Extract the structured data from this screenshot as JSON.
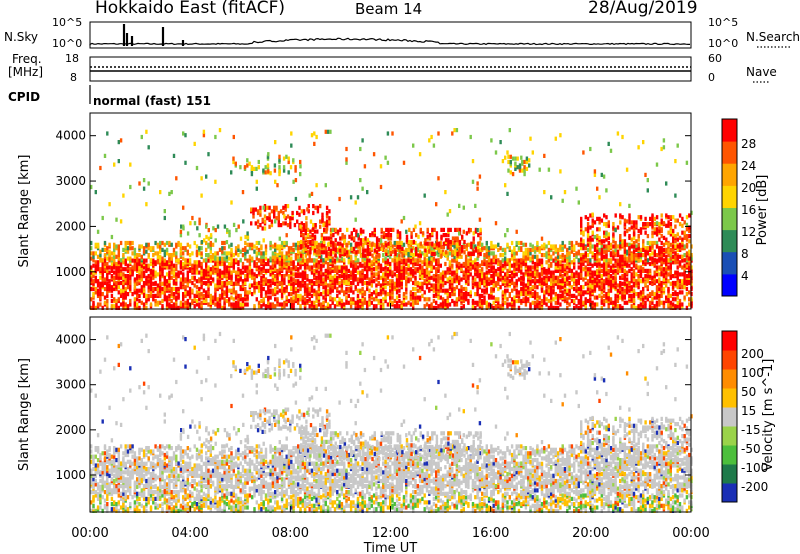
{
  "header": {
    "title": "Hokkaido East (fitACF)",
    "beam": "Beam 14",
    "date": "28/Aug/2019"
  },
  "top_panels": {
    "nsky_label": "N.Sky",
    "nsearch_label": "N.Search",
    "nsky_ticks": [
      "10^5",
      "10^0"
    ],
    "nsearch_ticks": [
      "10^5",
      "10^0"
    ],
    "freq_label_line1": "Freq.",
    "freq_label_line2": "[MHz]",
    "freq_ticks": [
      "18",
      "8"
    ],
    "nave_label": "Nave",
    "nave_ticks": [
      "60",
      "0"
    ],
    "cpid_label": "CPID",
    "cpid_value": "normal (fast) 151"
  },
  "chart_data": [
    {
      "type": "heatmap",
      "title": "",
      "xlabel": "",
      "ylabel": "Slant Range [km]",
      "ylim": [
        180,
        4500
      ],
      "yticks": [
        "1000",
        "2000",
        "3000",
        "4000"
      ],
      "colorbar": {
        "label": "Power [dB]",
        "ticks": [
          "28",
          "24",
          "20",
          "16",
          "12",
          "8",
          "4"
        ],
        "colors": [
          "#ff0000",
          "#ff5500",
          "#ffa500",
          "#ffd400",
          "#7cc84a",
          "#2e8b57",
          "#1a4fb5",
          "#0000ff"
        ]
      }
    },
    {
      "type": "heatmap",
      "title": "",
      "xlabel": "Time UT",
      "ylabel": "Slant Range [km]",
      "ylim": [
        180,
        4500
      ],
      "yticks": [
        "1000",
        "2000",
        "3000",
        "4000"
      ],
      "xticks": [
        "00:00",
        "04:00",
        "08:00",
        "12:00",
        "16:00",
        "20:00",
        "00:00"
      ],
      "colorbar": {
        "label": "Velocity [m s^-1]",
        "ticks": [
          "200",
          "100",
          "50",
          "15",
          "-15",
          "-50",
          "-100",
          "-200"
        ],
        "colors": [
          "#1a2fb5",
          "#1e7a4a",
          "#4cbf3c",
          "#9ad34a",
          "#c8c8c8",
          "#ffc000",
          "#ff8c00",
          "#ff4500",
          "#ff0000"
        ]
      }
    }
  ]
}
